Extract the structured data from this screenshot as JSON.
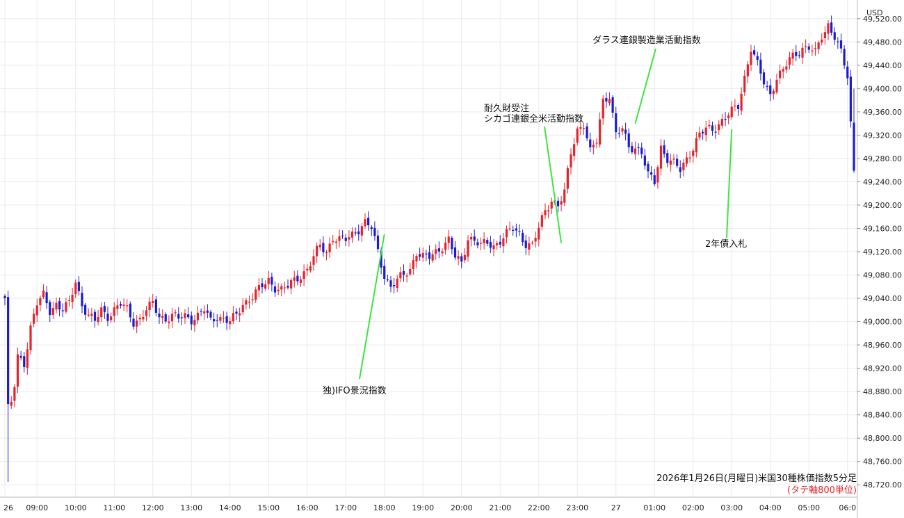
{
  "chart_data": {
    "type": "candlestick",
    "title": "2026年1月26日(月曜日)米国30種株価指数5分足",
    "subtitle": "(タテ軸800単位)",
    "currency": "USD",
    "ylim": [
      48700,
      49540
    ],
    "y_ticks": [
      48720,
      48760,
      48800,
      48840,
      48880,
      48920,
      48960,
      49000,
      49040,
      49080,
      49120,
      49160,
      49200,
      49240,
      49280,
      49320,
      49360,
      49400,
      49440,
      49480,
      49520
    ],
    "y_tick_labels": [
      "48,720.00",
      "48,760.00",
      "48,800.00",
      "48,840.00",
      "48,880.00",
      "48,920.00",
      "48,960.00",
      "49,000.00",
      "49,040.00",
      "49,080.00",
      "49,120.00",
      "49,160.00",
      "49,200.00",
      "49,240.00",
      "49,280.00",
      "49,320.00",
      "49,360.00",
      "49,400.00",
      "49,440.00",
      "49,480.00",
      "49,520.00"
    ],
    "x_ticks": [
      {
        "label": "26",
        "bar": 0
      },
      {
        "label": "09:00",
        "bar": 10
      },
      {
        "label": "10:00",
        "bar": 22
      },
      {
        "label": "11:00",
        "bar": 34
      },
      {
        "label": "12:00",
        "bar": 46
      },
      {
        "label": "13:00",
        "bar": 58
      },
      {
        "label": "14:00",
        "bar": 70
      },
      {
        "label": "15:00",
        "bar": 82
      },
      {
        "label": "16:00",
        "bar": 94
      },
      {
        "label": "17:00",
        "bar": 106
      },
      {
        "label": "18:00",
        "bar": 118
      },
      {
        "label": "19:00",
        "bar": 130
      },
      {
        "label": "20:00",
        "bar": 142
      },
      {
        "label": "21:00",
        "bar": 154
      },
      {
        "label": "22:00",
        "bar": 166
      },
      {
        "label": "23:00",
        "bar": 178
      },
      {
        "label": "27",
        "bar": 190
      },
      {
        "label": "01:00",
        "bar": 202
      },
      {
        "label": "02:00",
        "bar": 214
      },
      {
        "label": "03:00",
        "bar": 226
      },
      {
        "label": "04:00",
        "bar": 238
      },
      {
        "label": "05:00",
        "bar": 250
      },
      {
        "label": "06:0",
        "bar": 262
      }
    ],
    "grid": true,
    "up_color": "#e8222b",
    "down_color": "#1b1bd6",
    "annotations": [
      {
        "lines": [
          "独)IFO景況指数"
        ],
        "bar": 118,
        "price": 49150,
        "text_pos": "below"
      },
      {
        "lines": [
          "耐久財受注",
          "シカゴ連銀全米活動指数"
        ],
        "bar": 173,
        "price": 49135,
        "text_pos": "above"
      },
      {
        "lines": [
          "ダラス連銀製造業活動指数"
        ],
        "bar": 196,
        "price": 49340,
        "text_pos": "above"
      },
      {
        "lines": [
          "2年債入札"
        ],
        "bar": 226,
        "price": 49330,
        "text_pos": "below"
      }
    ],
    "price_anchors": [
      [
        0,
        49040
      ],
      [
        1,
        48850
      ],
      [
        2,
        48860
      ],
      [
        3,
        48890
      ],
      [
        4,
        48940
      ],
      [
        6,
        48930
      ],
      [
        8,
        48990
      ],
      [
        10,
        49030
      ],
      [
        12,
        49045
      ],
      [
        14,
        49020
      ],
      [
        16,
        49030
      ],
      [
        18,
        49020
      ],
      [
        20,
        49030
      ],
      [
        22,
        49070
      ],
      [
        24,
        49030
      ],
      [
        26,
        49010
      ],
      [
        28,
        49000
      ],
      [
        30,
        49020
      ],
      [
        32,
        49010
      ],
      [
        34,
        49020
      ],
      [
        36,
        49030
      ],
      [
        38,
        49020
      ],
      [
        40,
        49000
      ],
      [
        42,
        49005
      ],
      [
        44,
        49020
      ],
      [
        46,
        49030
      ],
      [
        48,
        49010
      ],
      [
        50,
        49005
      ],
      [
        52,
        49010
      ],
      [
        54,
        49005
      ],
      [
        56,
        49010
      ],
      [
        58,
        49005
      ],
      [
        60,
        49010
      ],
      [
        62,
        49020
      ],
      [
        64,
        49000
      ],
      [
        66,
        49010
      ],
      [
        68,
        49005
      ],
      [
        70,
        49000
      ],
      [
        72,
        49010
      ],
      [
        74,
        49030
      ],
      [
        76,
        49040
      ],
      [
        78,
        49050
      ],
      [
        80,
        49060
      ],
      [
        82,
        49070
      ],
      [
        84,
        49060
      ],
      [
        86,
        49055
      ],
      [
        88,
        49060
      ],
      [
        90,
        49070
      ],
      [
        92,
        49080
      ],
      [
        94,
        49090
      ],
      [
        96,
        49110
      ],
      [
        98,
        49130
      ],
      [
        100,
        49120
      ],
      [
        102,
        49145
      ],
      [
        104,
        49140
      ],
      [
        106,
        49140
      ],
      [
        108,
        49150
      ],
      [
        110,
        49160
      ],
      [
        112,
        49170
      ],
      [
        114,
        49160
      ],
      [
        116,
        49120
      ],
      [
        118,
        49080
      ],
      [
        120,
        49060
      ],
      [
        122,
        49070
      ],
      [
        124,
        49080
      ],
      [
        126,
        49090
      ],
      [
        128,
        49120
      ],
      [
        130,
        49110
      ],
      [
        132,
        49110
      ],
      [
        134,
        49120
      ],
      [
        136,
        49130
      ],
      [
        138,
        49140
      ],
      [
        140,
        49110
      ],
      [
        142,
        49100
      ],
      [
        144,
        49145
      ],
      [
        146,
        49140
      ],
      [
        148,
        49130
      ],
      [
        150,
        49135
      ],
      [
        152,
        49130
      ],
      [
        154,
        49140
      ],
      [
        156,
        49150
      ],
      [
        158,
        49160
      ],
      [
        160,
        49150
      ],
      [
        162,
        49135
      ],
      [
        164,
        49130
      ],
      [
        166,
        49160
      ],
      [
        168,
        49190
      ],
      [
        170,
        49210
      ],
      [
        172,
        49200
      ],
      [
        174,
        49220
      ],
      [
        176,
        49290
      ],
      [
        178,
        49330
      ],
      [
        180,
        49340
      ],
      [
        182,
        49290
      ],
      [
        184,
        49310
      ],
      [
        186,
        49380
      ],
      [
        188,
        49390
      ],
      [
        190,
        49320
      ],
      [
        192,
        49330
      ],
      [
        194,
        49300
      ],
      [
        196,
        49300
      ],
      [
        198,
        49290
      ],
      [
        200,
        49250
      ],
      [
        202,
        49240
      ],
      [
        204,
        49300
      ],
      [
        206,
        49280
      ],
      [
        208,
        49270
      ],
      [
        210,
        49260
      ],
      [
        212,
        49280
      ],
      [
        214,
        49300
      ],
      [
        216,
        49320
      ],
      [
        218,
        49330
      ],
      [
        220,
        49330
      ],
      [
        222,
        49340
      ],
      [
        224,
        49350
      ],
      [
        226,
        49360
      ],
      [
        228,
        49370
      ],
      [
        230,
        49420
      ],
      [
        232,
        49470
      ],
      [
        234,
        49440
      ],
      [
        236,
        49410
      ],
      [
        238,
        49390
      ],
      [
        240,
        49420
      ],
      [
        242,
        49430
      ],
      [
        244,
        49450
      ],
      [
        246,
        49460
      ],
      [
        248,
        49470
      ],
      [
        250,
        49470
      ],
      [
        252,
        49460
      ],
      [
        254,
        49490
      ],
      [
        256,
        49510
      ],
      [
        258,
        49490
      ],
      [
        260,
        49460
      ],
      [
        262,
        49420
      ],
      [
        264,
        49260
      ]
    ],
    "extreme_wicks": [
      {
        "bar": 1,
        "low": 48725
      },
      {
        "bar": 264,
        "high": 49400
      }
    ]
  }
}
